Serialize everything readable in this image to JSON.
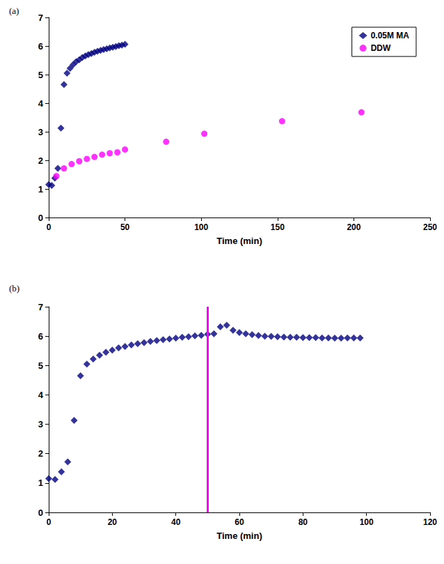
{
  "chart_data": [
    {
      "title": "(a)",
      "type": "scatter",
      "x_label": "Time (min)",
      "xlim": [
        0,
        250
      ],
      "xticks": [
        0,
        50,
        100,
        150,
        200,
        250
      ],
      "ylim": [
        0,
        7
      ],
      "yticks": [
        0,
        1,
        2,
        3,
        4,
        5,
        6,
        7
      ],
      "grid": false,
      "legend": "upper right",
      "series": [
        {
          "name": "0.05M MA",
          "color": "#000080",
          "marker": "diamond",
          "x": [
            0,
            2,
            4,
            6,
            8,
            10,
            12,
            14,
            16,
            18,
            20,
            22,
            24,
            26,
            28,
            30,
            32,
            34,
            36,
            38,
            40,
            42,
            44,
            46,
            48,
            50
          ],
          "values": [
            1.15,
            1.12,
            1.38,
            1.72,
            3.13,
            4.65,
            5.05,
            5.22,
            5.35,
            5.45,
            5.52,
            5.6,
            5.65,
            5.7,
            5.74,
            5.78,
            5.82,
            5.85,
            5.88,
            5.9,
            5.93,
            5.96,
            5.98,
            6.01,
            6.03,
            6.06
          ]
        },
        {
          "name": "DDW",
          "color": "#ff00ff",
          "marker": "circle",
          "x": [
            5,
            10,
            15,
            20,
            25,
            30,
            35,
            40,
            45,
            50,
            77,
            102,
            153,
            205
          ],
          "values": [
            1.45,
            1.72,
            1.87,
            1.97,
            2.05,
            2.12,
            2.2,
            2.25,
            2.28,
            2.38,
            2.65,
            2.93,
            3.37,
            3.68
          ]
        }
      ]
    },
    {
      "title": "(b)",
      "type": "scatter",
      "x_label": "Time (min)",
      "xlim": [
        0,
        120
      ],
      "xticks": [
        0,
        20,
        40,
        60,
        80,
        100,
        120
      ],
      "ylim": [
        0,
        7
      ],
      "yticks": [
        0,
        1,
        2,
        3,
        4,
        5,
        6,
        7
      ],
      "grid": false,
      "vertical_line": {
        "x": 50,
        "color": "#ff00ff"
      },
      "series": [
        {
          "color": "#000080",
          "marker": "diamond",
          "x": [
            0,
            2,
            4,
            6,
            8,
            10,
            12,
            14,
            16,
            18,
            20,
            22,
            24,
            26,
            28,
            30,
            32,
            34,
            36,
            38,
            40,
            42,
            44,
            46,
            48,
            50,
            52,
            54,
            56,
            58,
            60,
            62,
            64,
            66,
            68,
            70,
            72,
            74,
            76,
            78,
            80,
            82,
            84,
            86,
            88,
            90,
            92,
            94,
            96,
            98
          ],
          "values": [
            1.15,
            1.12,
            1.38,
            1.72,
            3.13,
            4.65,
            5.05,
            5.22,
            5.35,
            5.45,
            5.52,
            5.6,
            5.65,
            5.7,
            5.74,
            5.78,
            5.82,
            5.85,
            5.88,
            5.9,
            5.93,
            5.96,
            5.98,
            6.01,
            6.03,
            6.06,
            6.08,
            6.32,
            6.37,
            6.2,
            6.12,
            6.08,
            6.05,
            6.02,
            6.0,
            5.99,
            5.98,
            5.97,
            5.96,
            5.96,
            5.95,
            5.95,
            5.95,
            5.94,
            5.94,
            5.93,
            5.93,
            5.94,
            5.94,
            5.94
          ]
        }
      ]
    }
  ]
}
